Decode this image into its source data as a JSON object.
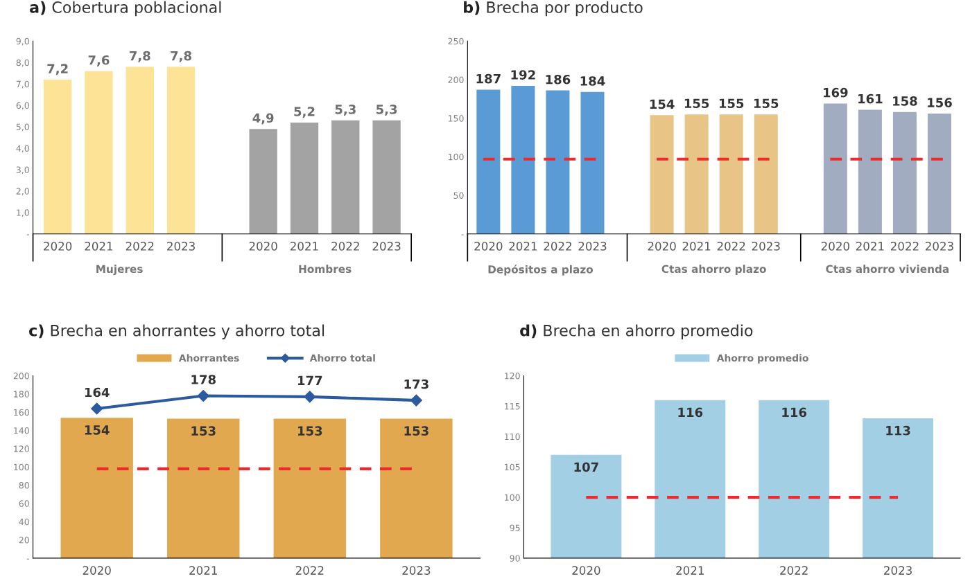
{
  "chart_data": [
    {
      "type": "bar",
      "title": "a)  Cobertura poblacional",
      "categories": [
        "2020",
        "2021",
        "2022",
        "2023",
        null,
        "2020",
        "2021",
        "2022",
        "2023"
      ],
      "values": [
        7.2,
        7.6,
        7.8,
        7.8,
        null,
        4.9,
        5.2,
        5.3,
        5.3
      ],
      "value_labels": [
        "7,2",
        "7,6",
        "7,8",
        "7,8",
        null,
        "4,9",
        "5,2",
        "5,3",
        "5,3"
      ],
      "colors": [
        "#fde395",
        "#fde395",
        "#fde395",
        "#fde395",
        null,
        "#a3a3a3",
        "#a3a3a3",
        "#a3a3a3",
        "#a3a3a3"
      ],
      "annotations": [
        "Mujeres",
        "Hombres"
      ],
      "ylim": [
        0,
        9
      ],
      "yticks": [
        {
          "value": 0,
          "label": "-"
        },
        {
          "value": 1,
          "label": "1,0"
        },
        {
          "value": 2,
          "label": "2,0"
        },
        {
          "value": 3,
          "label": "3,0"
        },
        {
          "value": 4,
          "label": "4,0"
        },
        {
          "value": 5,
          "label": "5,0"
        },
        {
          "value": 6,
          "label": "6,0"
        },
        {
          "value": 7,
          "label": "7,0"
        },
        {
          "value": 8,
          "label": "8,0"
        },
        {
          "value": 9,
          "label": "9,0"
        }
      ],
      "grid": false,
      "legend": false
    },
    {
      "type": "bar",
      "title": "b)  Brecha por producto",
      "categories": [
        "2020",
        "2021",
        "2022",
        "2023",
        null,
        "2020",
        "2021",
        "2022",
        "2023",
        null,
        "2020",
        "2021",
        "2022",
        "2023"
      ],
      "values": [
        187,
        192,
        186,
        184,
        null,
        154,
        155,
        155,
        155,
        null,
        169,
        161,
        158,
        156
      ],
      "colors": [
        "#5b9bd5",
        "#5b9bd5",
        "#5b9bd5",
        "#5b9bd5",
        null,
        "#e8c587",
        "#e8c587",
        "#e8c587",
        "#e8c587",
        null,
        "#a2acc0",
        "#a2acc0",
        "#a2acc0",
        "#a2acc0"
      ],
      "data_labels": true,
      "annotations": [
        "Depósitos a plazo",
        "Ctas ahorro plazo",
        "Ctas ahorro vivienda"
      ],
      "ref_lines": [
        {
          "axis": "y",
          "value": 97,
          "color": "#ee2a2a",
          "line_style": "dashed"
        }
      ],
      "ylim": [
        0,
        250
      ],
      "yticks": [
        {
          "value": 0,
          "label": "-"
        },
        50,
        100,
        150,
        200,
        250
      ],
      "grid": false,
      "legend": false
    },
    {
      "type": "bar",
      "title": "c)  Brecha en ahorrantes y ahorro total",
      "categories": [
        "2020",
        "2021",
        "2022",
        "2023"
      ],
      "series": [
        {
          "name": "Ahorrantes",
          "type": "bar",
          "color": "#e2a84f",
          "values": [
            154,
            153,
            153,
            153
          ]
        },
        {
          "name": "Ahorro total",
          "type": "line",
          "color": "#2c5a9e",
          "values": [
            164,
            178,
            177,
            173
          ]
        }
      ],
      "marker": "diamond",
      "line_style": "solid",
      "data_labels": true,
      "ref_lines": [
        {
          "axis": "y",
          "value": 98,
          "color": "#ee2a2a",
          "line_style": "dashed"
        }
      ],
      "ylim": [
        0,
        200
      ],
      "yticks": [
        {
          "value": 0,
          "label": "-"
        },
        20,
        40,
        60,
        80,
        100,
        120,
        140,
        160,
        180,
        200
      ],
      "grid": false,
      "legend": "top"
    },
    {
      "type": "bar",
      "title": "d)  Brecha en ahorro promedio",
      "categories": [
        "2020",
        "2021",
        "2022",
        "2023"
      ],
      "series": [
        {
          "name": "Ahorro promedio",
          "color": "#a3cfe5",
          "values": [
            107,
            116,
            116,
            113
          ]
        }
      ],
      "data_labels": true,
      "ref_lines": [
        {
          "axis": "y",
          "value": 100,
          "color": "#ee2a2a",
          "line_style": "dashed"
        }
      ],
      "ylim": [
        90,
        120
      ],
      "yticks": [
        90,
        95,
        100,
        105,
        110,
        115,
        120
      ],
      "grid": false,
      "legend": "top"
    }
  ]
}
